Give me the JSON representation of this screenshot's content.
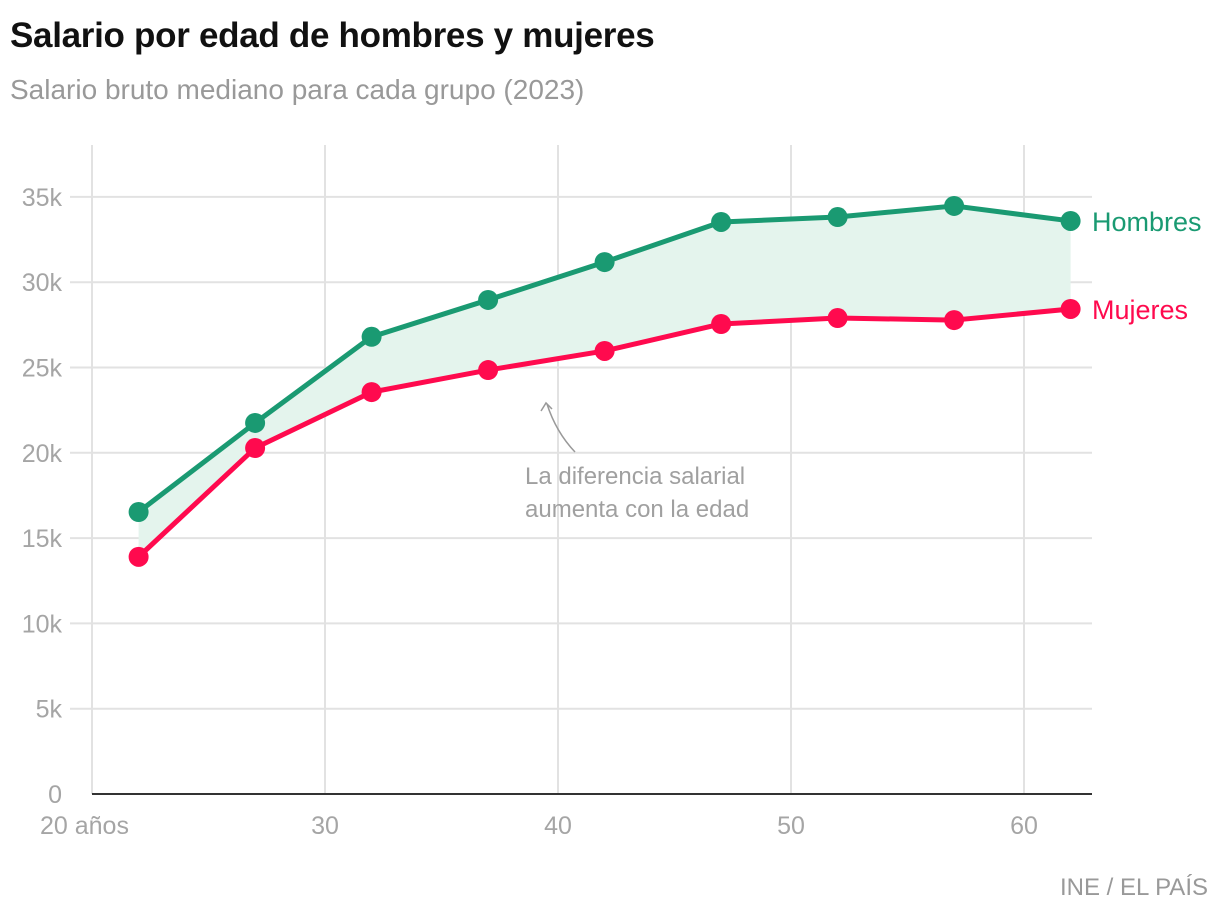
{
  "chart_data": {
    "type": "line",
    "title": "Salario por edad de hombres y mujeres",
    "subtitle": "Salario bruto mediano para cada grupo (2023)",
    "source": "INE / EL PAÍS",
    "xlabel": "",
    "ylabel": "",
    "x": [
      22,
      27,
      32,
      37,
      42,
      47,
      52,
      57,
      62
    ],
    "xlim": [
      20,
      63
    ],
    "ylim": [
      0,
      38000
    ],
    "x_ticks": [
      {
        "value": 20,
        "label": "20 años"
      },
      {
        "value": 30,
        "label": "30"
      },
      {
        "value": 40,
        "label": "40"
      },
      {
        "value": 50,
        "label": "50"
      },
      {
        "value": 60,
        "label": "60"
      }
    ],
    "y_ticks": [
      {
        "value": 0,
        "label": "0"
      },
      {
        "value": 5000,
        "label": "5k"
      },
      {
        "value": 10000,
        "label": "10k"
      },
      {
        "value": 15000,
        "label": "15k"
      },
      {
        "value": 20000,
        "label": "20k"
      },
      {
        "value": 25000,
        "label": "25k"
      },
      {
        "value": 30000,
        "label": "30k"
      },
      {
        "value": 35000,
        "label": "35k"
      }
    ],
    "grid": true,
    "legend": "direct labels at right end",
    "series": [
      {
        "name": "Hombres",
        "color": "#1a9a72",
        "values": [
          16530,
          21750,
          26800,
          28960,
          31180,
          33530,
          33820,
          34470,
          33590
        ]
      },
      {
        "name": "Mujeres",
        "color": "#ff0a4e",
        "values": [
          13900,
          20280,
          23560,
          24850,
          25970,
          27550,
          27900,
          27780,
          28430
        ]
      }
    ],
    "band_color": "#e4f4ed",
    "annotation": {
      "lines": [
        "La diferencia salarial",
        "aumenta con la edad"
      ],
      "x": 39.5,
      "y": 23000
    }
  }
}
